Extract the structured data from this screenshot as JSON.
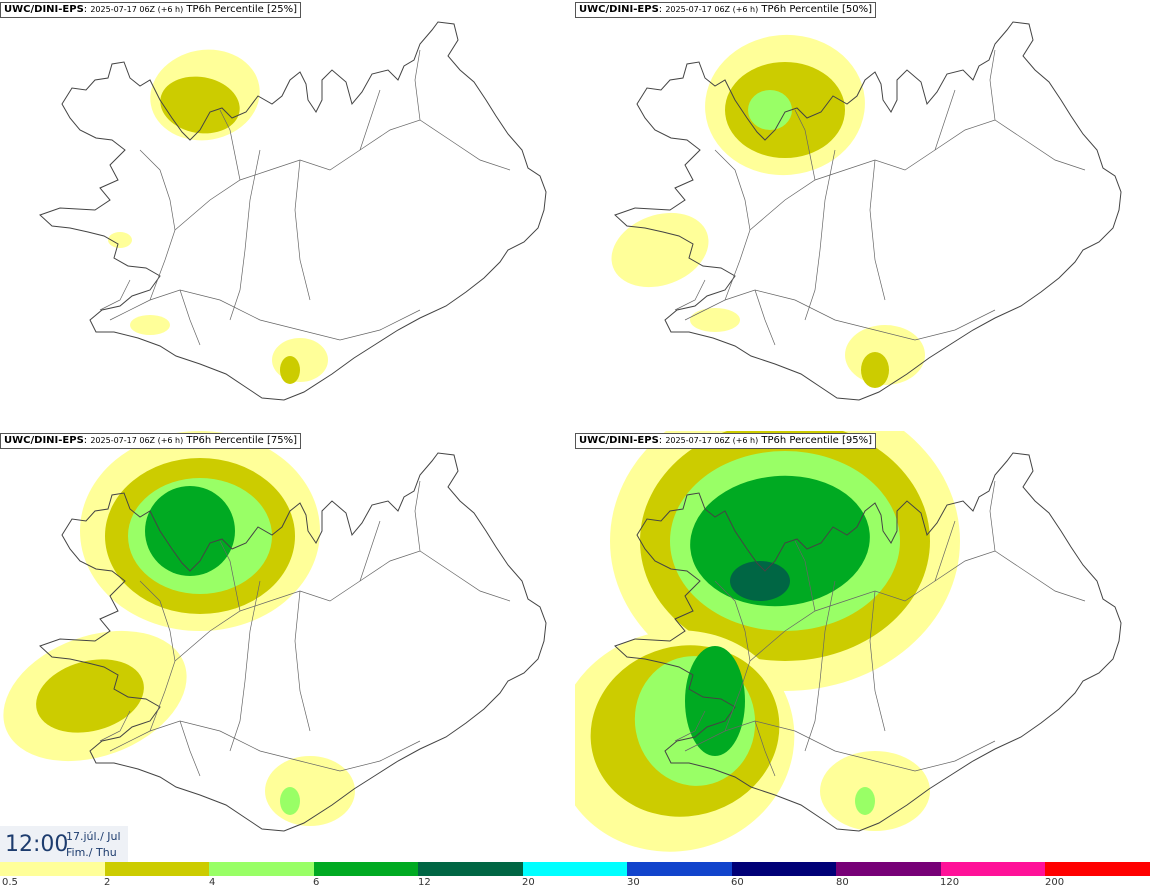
{
  "panels": [
    {
      "id": "p25",
      "source": "UWC/DINI-EPS",
      "time": "2025-07-17 06Z (+6 h)",
      "product": "TP6h Percentile [25%]",
      "level": 0
    },
    {
      "id": "p50",
      "source": "UWC/DINI-EPS",
      "time": "2025-07-17 06Z (+6 h)",
      "product": "TP6h Percentile [50%]",
      "level": 1
    },
    {
      "id": "p75",
      "source": "UWC/DINI-EPS",
      "time": "2025-07-17 06Z (+6 h)",
      "product": "TP6h Percentile [75%]",
      "level": 2
    },
    {
      "id": "p95",
      "source": "UWC/DINI-EPS",
      "time": "2025-07-17 06Z (+6 h)",
      "product": "TP6h Percentile [95%]",
      "level": 3
    }
  ],
  "timestamp": {
    "hour": "12:00",
    "date_line": "17.júl./ Jul",
    "day_line": "Fim./ Thu"
  },
  "legend": {
    "colors": [
      "#ffff99",
      "#cccc00",
      "#99ff66",
      "#00aa22",
      "#006644",
      "#00ffff",
      "#1144cc",
      "#000077",
      "#770077",
      "#ff1199",
      "#ff0000"
    ],
    "labels": [
      "0.5",
      "2",
      "4",
      "6",
      "12",
      "20",
      "30",
      "60",
      "80",
      "120",
      "200"
    ]
  }
}
